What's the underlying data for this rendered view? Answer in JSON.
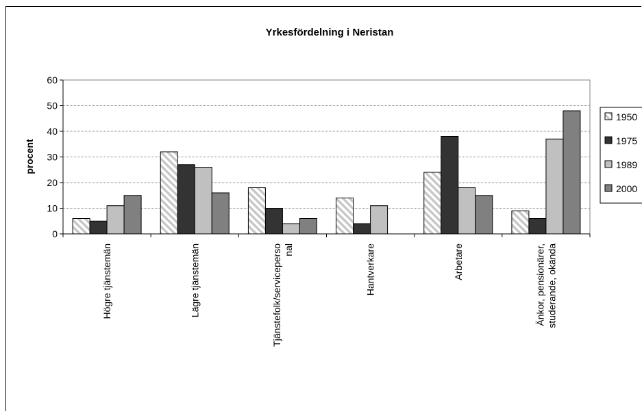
{
  "chart_data": {
    "type": "bar",
    "title": "Yrkesfördelning i Neristan",
    "ylabel": "procent",
    "xlabel": "",
    "ylim": [
      0,
      60
    ],
    "yticks": [
      0,
      10,
      20,
      30,
      40,
      50,
      60
    ],
    "grid": true,
    "legend_position": "right",
    "categories": [
      [
        "Högre tjänstemän"
      ],
      [
        "Lägre tjänstemän"
      ],
      [
        "Tjänstefolk/serviceperso",
        "nal"
      ],
      [
        "Hantverkare"
      ],
      [
        "Arbetare"
      ],
      [
        "Änkor, pensionärer,",
        "studerande, okända"
      ]
    ],
    "series": [
      {
        "name": "1950",
        "values": [
          6,
          32,
          18,
          14,
          24,
          9
        ],
        "color": "#d8d8d8",
        "pattern": "hatch"
      },
      {
        "name": "1975",
        "values": [
          5,
          27,
          10,
          4,
          38,
          6
        ],
        "color": "#333333",
        "pattern": "solid"
      },
      {
        "name": "1989",
        "values": [
          11,
          26,
          4,
          11,
          18,
          37
        ],
        "color": "#c0c0c0",
        "pattern": "solid"
      },
      {
        "name": "2000",
        "values": [
          15,
          16,
          6,
          0,
          15,
          48
        ],
        "color": "#808080",
        "pattern": "solid"
      }
    ]
  }
}
